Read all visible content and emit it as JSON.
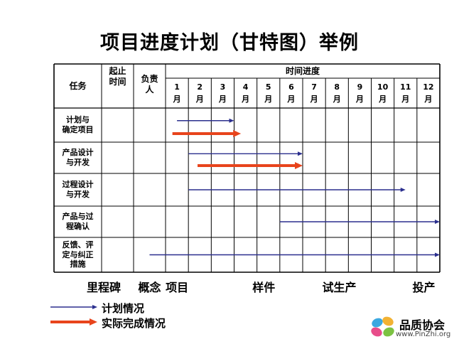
{
  "title": "项目进度计划（甘特图）举例",
  "table": {
    "col_headers": {
      "task": "任务",
      "start": "起止\n时间",
      "owner": "负责\n人",
      "timeline": "时间进度"
    },
    "months": [
      {
        "num": "1",
        "unit": "月"
      },
      {
        "num": "2",
        "unit": "月"
      },
      {
        "num": "3",
        "unit": "月"
      },
      {
        "num": "4",
        "unit": "月"
      },
      {
        "num": "5",
        "unit": "月"
      },
      {
        "num": "6",
        "unit": "月"
      },
      {
        "num": "7",
        "unit": "月"
      },
      {
        "num": "8",
        "unit": "月"
      },
      {
        "num": "9",
        "unit": "月"
      },
      {
        "num": "10",
        "unit": "月"
      },
      {
        "num": "11",
        "unit": "月"
      },
      {
        "num": "12",
        "unit": "月"
      }
    ],
    "tasks": [
      {
        "label": "计划与\n确定项目",
        "plan": {
          "start": 0.5,
          "end": 3.0
        },
        "actual": {
          "start": 0.3,
          "end": 3.3
        }
      },
      {
        "label": "产品设计\n与开发",
        "plan": {
          "start": 1.0,
          "end": 6.0
        },
        "actual": {
          "start": 1.4,
          "end": 6.0
        }
      },
      {
        "label": "过程设计\n与开发",
        "plan": {
          "start": 1.0,
          "end": 10.5
        }
      },
      {
        "label": "产品与过\n程确认",
        "plan": {
          "start": 5.0,
          "end": 12.0
        }
      },
      {
        "label": "反馈、评\n定与纠正\n措施",
        "plan": {
          "start": -0.7,
          "end": 12.0
        }
      }
    ]
  },
  "milestones": {
    "label": "里程碑",
    "items": [
      {
        "text": "概念",
        "month": -0.7
      },
      {
        "text": "项目",
        "month": 0.5
      },
      {
        "text": "样件",
        "month": 4.3
      },
      {
        "text": "试生产",
        "month": 7.6
      },
      {
        "text": "投产",
        "month": 11.3
      }
    ]
  },
  "legend": {
    "plan": "计划情况",
    "actual": "实际完成情况"
  },
  "colors": {
    "plan": "#2b2f8e",
    "actual": "#e8441c"
  },
  "logo": {
    "name": "品质协会",
    "url": "www.PinZhi.org"
  }
}
